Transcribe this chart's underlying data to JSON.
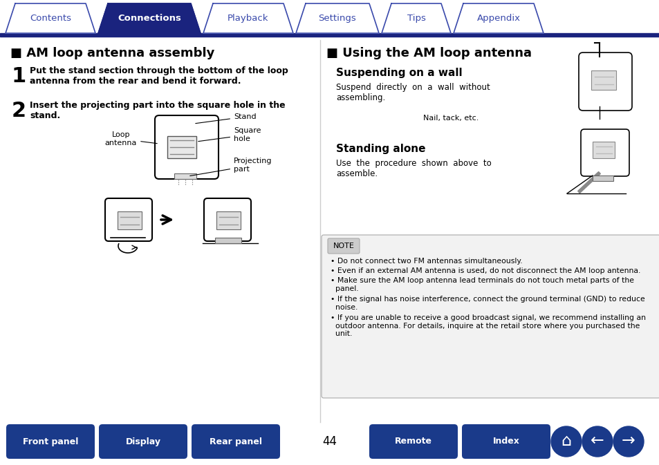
{
  "bg_color": "#ffffff",
  "tab_bar_color": "#1a237e",
  "tab_bg_active": "#1a237e",
  "tab_bg_inactive": "#ffffff",
  "tab_border_color": "#3949ab",
  "tab_text_active": "#ffffff",
  "tab_text_inactive": "#3949ab",
  "tabs": [
    "Contents",
    "Connections",
    "Playback",
    "Settings",
    "Tips",
    "Appendix"
  ],
  "active_tab": 1,
  "bottom_buttons": [
    "Front panel",
    "Display",
    "Rear panel",
    "Remote",
    "Index"
  ],
  "page_number": "44",
  "btn_color": "#1a3a8a",
  "btn_text_color": "#ffffff",
  "left_section_title": "■ AM loop antenna assembly",
  "step1_num": "1",
  "step1_text": "Put the stand section through the bottom of the loop\nantenna from the rear and bend it forward.",
  "step2_num": "2",
  "step2_text": "Insert the projecting part into the square hole in the\nstand.",
  "diagram_labels": [
    "Loop\nantenna",
    "Stand",
    "Square\nhole",
    "Projecting\npart"
  ],
  "right_section_title": "■ Using the AM loop antenna",
  "wall_title": "Suspending on a wall",
  "wall_text": "Suspend  directly  on  a  wall  without\nassembling.",
  "wall_note": "Nail, tack, etc.",
  "stand_title": "Standing alone",
  "stand_text": "Use  the  procedure  shown  above  to\nassemble.",
  "note_label": "NOTE",
  "note_bullets": [
    "• Do not connect two FM antennas simultaneously.",
    "• Even if an external AM antenna is used, do not disconnect the AM loop antenna.",
    "• Make sure the AM loop antenna lead terminals do not touch metal parts of the\n  panel.",
    "• If the signal has noise interference, connect the ground terminal (GND) to reduce\n  noise.",
    "• If you are unable to receive a good broadcast signal, we recommend installing an\n  outdoor antenna. For details, inquire at the retail store where you purchased the\n  unit."
  ],
  "title_color": "#000000",
  "text_color": "#000000",
  "note_border_color": "#aaaaaa",
  "section_title_size": 13,
  "step_num_size": 22,
  "step_text_size": 9,
  "body_text_size": 8.5,
  "note_text_size": 7.8
}
